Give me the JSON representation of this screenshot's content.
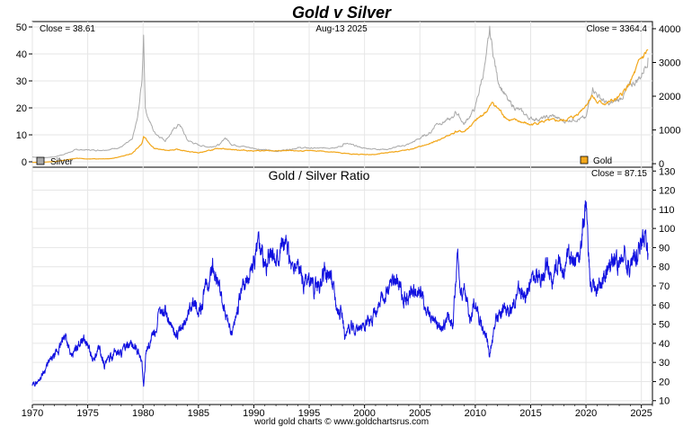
{
  "title": "Gold v Silver",
  "date_label": "Aug-13  2025",
  "footer": "world gold charts © www.goldchartsrus.com",
  "colors": {
    "silver": "#a9a9a9",
    "gold": "#f2a71b",
    "ratio": "#1010e0",
    "title": "#1a1ae6",
    "grid": "#e6e6e6"
  },
  "chart_data": [
    {
      "type": "line",
      "panel": "top",
      "title": "",
      "x_range": [
        1970,
        2026
      ],
      "x_ticks": [
        1970,
        1975,
        1980,
        1985,
        1990,
        1995,
        2000,
        2005,
        2010,
        2015,
        2020,
        2025
      ],
      "y_left_range": [
        -2,
        52
      ],
      "y_left_ticks": [
        0,
        10,
        20,
        30,
        40,
        50
      ],
      "y_right_range": [
        -104,
        4212
      ],
      "y_right_ticks": [
        0,
        1000,
        2000,
        3000,
        4000
      ],
      "close_left": "Close = 38.61",
      "close_right": "Close = 3364.4",
      "legend": {
        "silver": "Silver",
        "gold": "Gold"
      },
      "series": [
        {
          "name": "Silver",
          "axis": "left",
          "x": [
            1970,
            1971,
            1972,
            1973,
            1974,
            1975,
            1976,
            1977,
            1978,
            1979,
            1979.5,
            1979.9,
            1980.05,
            1980.2,
            1980.5,
            1981,
            1982,
            1983,
            1983.3,
            1984,
            1985,
            1986,
            1987,
            1987.4,
            1988,
            1990,
            1992,
            1994,
            1996,
            1998,
            1998.1,
            2000,
            2002,
            2004,
            2006,
            2006.4,
            2008,
            2008.2,
            2009,
            2010,
            2011,
            2011.3,
            2012,
            2013,
            2014,
            2015,
            2016,
            2017,
            2018,
            2019,
            2020,
            2020.6,
            2021,
            2022,
            2023,
            2024,
            2025,
            2025.6
          ],
          "y": [
            1.8,
            1.5,
            1.8,
            3.0,
            4.5,
            4.4,
            4.3,
            4.6,
            5.5,
            8,
            16,
            30,
            48,
            20,
            16,
            11,
            8,
            13,
            14,
            8,
            6.2,
            5.5,
            6.5,
            9,
            6.5,
            5,
            3.9,
            5.2,
            5.0,
            5.7,
            7,
            5,
            4.6,
            6.5,
            11,
            14,
            16,
            19,
            14,
            20,
            38,
            48,
            31,
            22,
            19,
            16,
            16,
            17,
            15,
            16,
            16,
            28,
            25,
            21,
            23,
            28,
            32,
            38.61
          ]
        },
        {
          "name": "Gold",
          "axis": "right",
          "x": [
            1970,
            1972,
            1974,
            1975,
            1977,
            1978,
            1979,
            1979.9,
            1980.05,
            1980.5,
            1981,
            1982,
            1983,
            1985,
            1987,
            1988,
            1990,
            1993,
            1996,
            1999,
            2001,
            2002,
            2004,
            2006,
            2008,
            2008.2,
            2009,
            2010,
            2011,
            2011.6,
            2012,
            2013,
            2014,
            2015,
            2016,
            2017,
            2018,
            2019,
            2020,
            2020.6,
            2021,
            2022,
            2023,
            2024,
            2025,
            2025.6
          ],
          "y": [
            36,
            60,
            160,
            140,
            150,
            210,
            300,
            600,
            800,
            620,
            450,
            400,
            420,
            320,
            460,
            420,
            380,
            380,
            380,
            280,
            270,
            330,
            410,
            600,
            900,
            950,
            950,
            1250,
            1550,
            1800,
            1650,
            1300,
            1250,
            1150,
            1250,
            1270,
            1280,
            1400,
            1750,
            2050,
            1800,
            1800,
            1950,
            2400,
            3100,
            3364.4
          ]
        }
      ]
    },
    {
      "type": "line",
      "panel": "bottom",
      "title": "Gold  /  Silver Ratio",
      "x_range": [
        1970,
        2026
      ],
      "x_ticks": [
        1970,
        1975,
        1980,
        1985,
        1990,
        1995,
        2000,
        2005,
        2010,
        2015,
        2020,
        2025
      ],
      "y_range": [
        8,
        132
      ],
      "y_ticks": [
        10,
        20,
        30,
        40,
        50,
        60,
        70,
        80,
        90,
        100,
        110,
        120,
        130
      ],
      "close": "Close = 87.15",
      "series": [
        {
          "name": "",
          "x": [
            1970,
            1970.5,
            1971,
            1971.5,
            1972,
            1972.5,
            1973,
            1973.5,
            1974,
            1974.5,
            1975,
            1975.5,
            1976,
            1976.5,
            1977,
            1977.5,
            1978,
            1978.5,
            1979,
            1979.5,
            1979.9,
            1980.05,
            1980.3,
            1980.6,
            1981,
            1981.5,
            1982,
            1982.5,
            1983,
            1983.5,
            1984,
            1984.5,
            1985,
            1985.5,
            1986,
            1986.3,
            1986.6,
            1987,
            1987.5,
            1988,
            1988.5,
            1989,
            1989.5,
            1990,
            1990.5,
            1991,
            1991.5,
            1992,
            1992.5,
            1993,
            1993.5,
            1994,
            1994.5,
            1995,
            1995.5,
            1996,
            1996.5,
            1997,
            1997.5,
            1998,
            1998.2,
            1998.5,
            1999,
            1999.5,
            2000,
            2000.5,
            2001,
            2001.5,
            2002,
            2002.5,
            2003,
            2003.5,
            2004,
            2004.5,
            2005,
            2005.5,
            2006,
            2006.5,
            2007,
            2007.5,
            2008,
            2008.4,
            2008.8,
            2009,
            2009.5,
            2010,
            2010.5,
            2011,
            2011.3,
            2011.6,
            2012,
            2012.5,
            2013,
            2013.5,
            2014,
            2014.5,
            2015,
            2015.5,
            2016,
            2016.5,
            2017,
            2017.5,
            2018,
            2018.5,
            2019,
            2019.5,
            2020,
            2020.2,
            2020.4,
            2020.7,
            2021,
            2021.5,
            2022,
            2022.5,
            2023,
            2023.5,
            2024,
            2024.5,
            2025,
            2025.3,
            2025.6
          ],
          "y": [
            18,
            20,
            25,
            30,
            33,
            38,
            45,
            32,
            38,
            43,
            39,
            30,
            38,
            29,
            32,
            36,
            35,
            38,
            39,
            36,
            30,
            17,
            38,
            40,
            45,
            55,
            58,
            50,
            44,
            47,
            55,
            63,
            54,
            66,
            72,
            80,
            76,
            65,
            55,
            45,
            58,
            70,
            75,
            82,
            95,
            80,
            88,
            84,
            93,
            89,
            78,
            82,
            70,
            72,
            68,
            70,
            78,
            75,
            60,
            55,
            42,
            47,
            50,
            47,
            50,
            52,
            55,
            62,
            67,
            72,
            73,
            62,
            63,
            68,
            68,
            57,
            52,
            50,
            48,
            55,
            52,
            85,
            64,
            70,
            53,
            63,
            50,
            45,
            33,
            45,
            55,
            58,
            57,
            62,
            67,
            64,
            72,
            74,
            77,
            83,
            73,
            82,
            76,
            87,
            84,
            87,
            115,
            90,
            68,
            71,
            65,
            73,
            80,
            85,
            82,
            89,
            80,
            88,
            91,
            100,
            87.15
          ]
        }
      ]
    }
  ]
}
